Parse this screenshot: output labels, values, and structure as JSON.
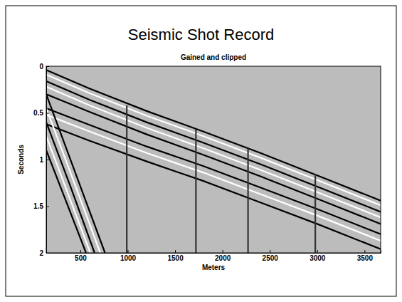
{
  "chart_data": {
    "type": "line",
    "title": "Seismic Shot Record",
    "subtitle": "Gained and clipped",
    "x_label": "Meters",
    "y_label": "Seconds",
    "xlim": [
      140,
      3670
    ],
    "ylim": [
      0,
      2
    ],
    "xticks": [
      500,
      1000,
      1500,
      2000,
      2500,
      3000,
      3500
    ],
    "yticks": [
      0,
      0.5,
      1,
      1.5,
      2
    ],
    "grid": false,
    "series": [
      {
        "color": "#000000",
        "x": [
          140,
          600,
          1200,
          1800,
          2400,
          3000,
          3670
        ],
        "values": [
          0.04,
          0.24,
          0.48,
          0.7,
          0.93,
          1.17,
          1.44
        ]
      },
      {
        "color": "#ffffff",
        "x": [
          140,
          600,
          1200,
          1800,
          2400,
          3000,
          3670
        ],
        "values": [
          0.09,
          0.29,
          0.53,
          0.75,
          0.98,
          1.22,
          1.49
        ]
      },
      {
        "color": "#000000",
        "x": [
          140,
          600,
          1200,
          1800,
          2400,
          3000,
          3670
        ],
        "values": [
          0.16,
          0.36,
          0.6,
          0.82,
          1.05,
          1.29,
          1.56
        ]
      },
      {
        "color": "#ffffff",
        "x": [
          140,
          600,
          1200,
          1800,
          2400,
          3000,
          3670
        ],
        "values": [
          0.22,
          0.42,
          0.66,
          0.88,
          1.11,
          1.35,
          1.62
        ]
      },
      {
        "color": "#000000",
        "x": [
          140,
          600,
          1200,
          1800,
          2400,
          3000,
          3670
        ],
        "values": [
          0.3,
          0.49,
          0.73,
          0.95,
          1.18,
          1.42,
          1.69
        ]
      },
      {
        "color": "#000000",
        "x": [
          140,
          600,
          1200,
          1800,
          2400,
          3000,
          3670
        ],
        "values": [
          0.45,
          0.63,
          0.86,
          1.07,
          1.3,
          1.53,
          1.8
        ]
      },
      {
        "color": "#ffffff",
        "x": [
          140,
          600,
          1200,
          1800,
          2400,
          3000,
          3670
        ],
        "values": [
          0.52,
          0.7,
          0.93,
          1.14,
          1.37,
          1.6,
          1.87
        ]
      },
      {
        "color": "#000000",
        "x": [
          140,
          600,
          1200,
          1800,
          2400,
          3000,
          3670
        ],
        "values": [
          0.62,
          0.8,
          1.02,
          1.23,
          1.46,
          1.69,
          1.96
        ]
      },
      {
        "color": "#000000",
        "x": [
          140,
          450,
          760
        ],
        "values": [
          0.3,
          1.15,
          2.0
        ]
      },
      {
        "color": "#ffffff",
        "x": [
          140,
          425,
          710
        ],
        "values": [
          0.45,
          1.22,
          2.0
        ]
      },
      {
        "color": "#000000",
        "x": [
          140,
          400,
          650
        ],
        "values": [
          0.6,
          1.3,
          2.0
        ]
      },
      {
        "color": "#ffffff",
        "x": [
          140,
          375,
          605
        ],
        "values": [
          0.75,
          1.38,
          2.0
        ]
      },
      {
        "color": "#000000",
        "x": [
          140,
          350,
          560
        ],
        "values": [
          0.9,
          1.45,
          2.0
        ]
      },
      {
        "color": "#333333",
        "x": [
          990,
          990
        ],
        "values": [
          0.42,
          2.0
        ]
      },
      {
        "color": "#333333",
        "x": [
          1720,
          1720
        ],
        "values": [
          0.68,
          2.0
        ]
      },
      {
        "color": "#333333",
        "x": [
          2270,
          2270
        ],
        "values": [
          0.88,
          2.0
        ]
      },
      {
        "color": "#333333",
        "x": [
          2980,
          2980
        ],
        "values": [
          1.16,
          2.0
        ]
      }
    ]
  }
}
